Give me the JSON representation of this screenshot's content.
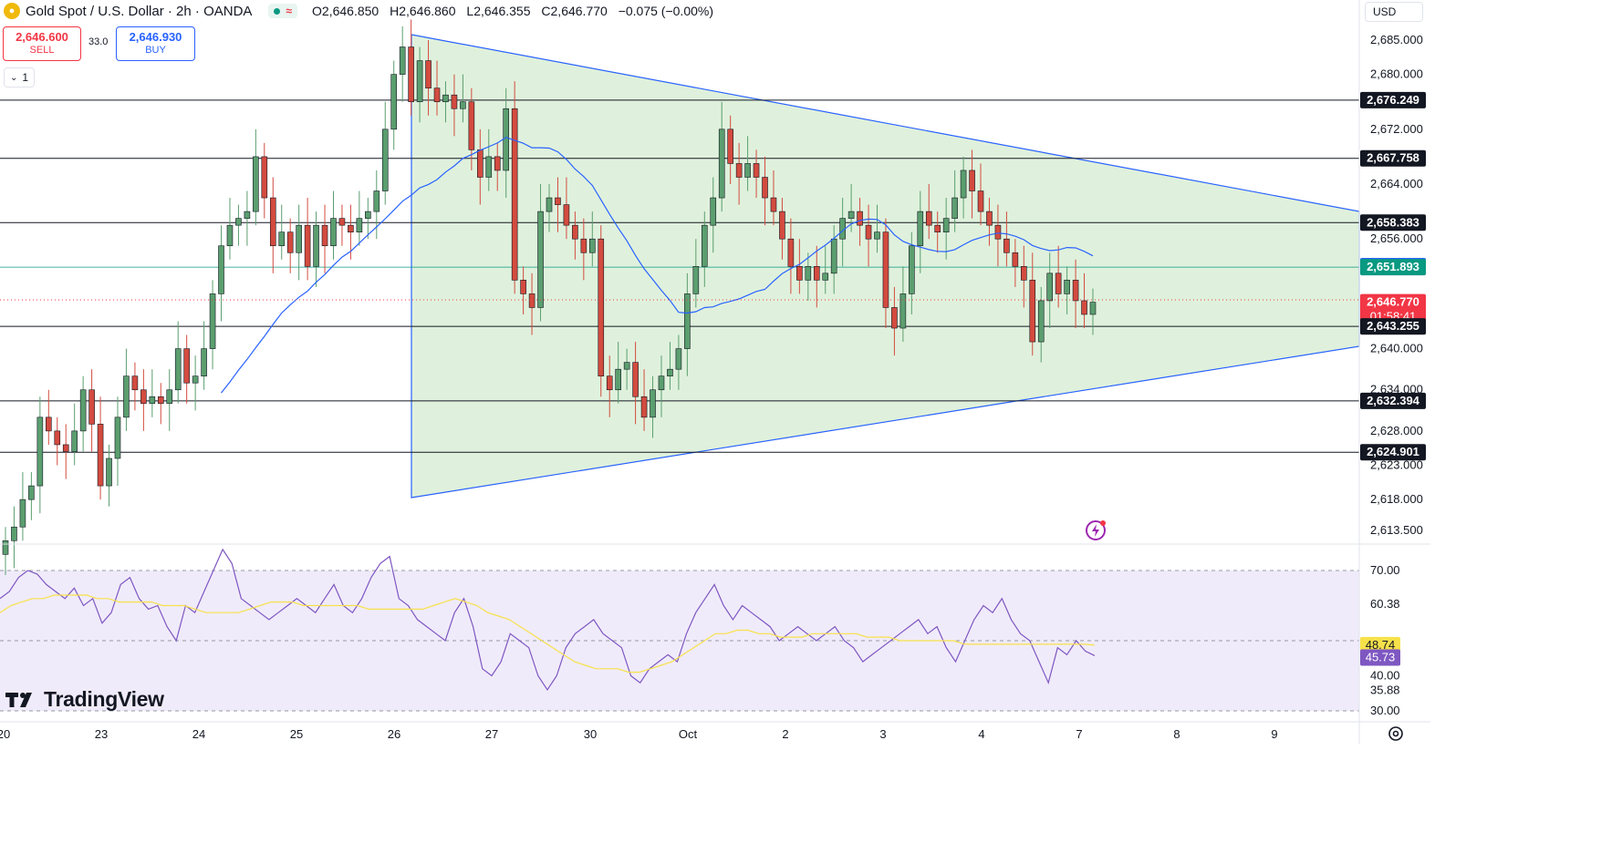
{
  "header": {
    "symbol": "Gold Spot / U.S. Dollar · 2h · OANDA",
    "ohlc": [
      {
        "label": "O",
        "value": "2,646.850"
      },
      {
        "label": "H",
        "value": "2,646.860"
      },
      {
        "label": "L",
        "value": "2,646.355"
      },
      {
        "label": "C",
        "value": "2,646.770"
      }
    ],
    "change": "−0.075 (−0.00%)"
  },
  "trade": {
    "sell_price": "2,646.600",
    "sell_label": "SELL",
    "spread": "33.0",
    "buy_price": "2,646.930",
    "buy_label": "BUY"
  },
  "indicator_toggle": "1",
  "currency": "USD",
  "brand": "TradingView",
  "colors": {
    "up": "#089981",
    "down": "#f23645",
    "candle_up": "#5b9e6f",
    "candle_down": "#d34b3f",
    "ma_line": "#2962ff",
    "rsi_line": "#7e57c2",
    "rsi_ma": "#f7e14a",
    "triangle_fill": "#dff1dc",
    "triangle_stroke": "#2962ff"
  },
  "chart_data": [
    {
      "type": "candlestick",
      "name": "price",
      "y_axis_ticks": [
        "2,685.000",
        "2,680.000",
        "2,672.000",
        "2,664.000",
        "2,656.000",
        "2,640.000",
        "2,634.000",
        "2,628.000",
        "2,623.000",
        "2,618.000",
        "2,613.500"
      ],
      "ylim": [
        2610,
        2690
      ],
      "x_axis_labels": [
        "20",
        "23",
        "24",
        "25",
        "26",
        "27",
        "30",
        "Oct",
        "2",
        "3",
        "4",
        "7",
        "8",
        "9"
      ],
      "horizontal_levels": [
        {
          "value": "2,676.249",
          "style": "black"
        },
        {
          "value": "2,667.758",
          "style": "black"
        },
        {
          "value": "2,658.383",
          "style": "black"
        },
        {
          "value": "2,652.035",
          "style": "blue"
        },
        {
          "value": "2,651.893",
          "style": "green"
        },
        {
          "value": "2,643.255",
          "style": "black"
        },
        {
          "value": "2,632.394",
          "style": "black"
        },
        {
          "value": "2,624.901",
          "style": "black"
        }
      ],
      "last_price": {
        "value": "2,646.770",
        "countdown": "01:58:41"
      },
      "closes": [
        2612,
        2614,
        2618,
        2620,
        2630,
        2628,
        2626,
        2625,
        2628,
        2634,
        2629,
        2620,
        2624,
        2630,
        2636,
        2634,
        2632,
        2633,
        2632,
        2634,
        2640,
        2635,
        2636,
        2640,
        2648,
        2655,
        2658,
        2659,
        2660,
        2668,
        2662,
        2655,
        2657,
        2654,
        2658,
        2652,
        2658,
        2655,
        2659,
        2658,
        2657,
        2659,
        2660,
        2663,
        2672,
        2680,
        2684,
        2676,
        2682,
        2678,
        2676,
        2677,
        2675,
        2676,
        2669,
        2665,
        2668,
        2666,
        2675,
        2650,
        2648,
        2646,
        2660,
        2662,
        2661,
        2658,
        2656,
        2654,
        2656,
        2636,
        2634,
        2637,
        2638,
        2633,
        2630,
        2634,
        2636,
        2637,
        2640,
        2648,
        2652,
        2658,
        2662,
        2672,
        2667,
        2665,
        2667,
        2665,
        2662,
        2660,
        2656,
        2652,
        2650,
        2652,
        2650,
        2651,
        2656,
        2659,
        2660,
        2658,
        2656,
        2657,
        2646,
        2643,
        2648,
        2655,
        2660,
        2658,
        2657,
        2659,
        2662,
        2666,
        2663,
        2660,
        2658,
        2656,
        2654,
        2652,
        2650,
        2641,
        2647,
        2651,
        2648,
        2650,
        2647,
        2645,
        2646.77
      ],
      "ma_line": "blue moving average"
    },
    {
      "type": "line",
      "name": "RSI",
      "y_axis_ticks": [
        "70.00",
        "60.38",
        "40.00",
        "35.88",
        "30.00"
      ],
      "ylim": [
        25,
        80
      ],
      "levels": [
        70,
        50,
        30
      ],
      "rsi_value": "45.73",
      "rsi_ma_value": "48.74",
      "rsi": [
        62,
        64,
        68,
        70,
        69,
        66,
        64,
        62,
        65,
        60,
        62,
        55,
        58,
        66,
        68,
        62,
        59,
        60,
        54,
        50,
        60,
        58,
        64,
        70,
        76,
        72,
        62,
        60,
        58,
        56,
        58,
        60,
        62,
        60,
        58,
        62,
        66,
        60,
        58,
        62,
        68,
        72,
        74,
        62,
        60,
        56,
        54,
        52,
        50,
        58,
        62,
        54,
        42,
        40,
        44,
        52,
        50,
        48,
        40,
        36,
        40,
        48,
        52,
        54,
        56,
        52,
        50,
        48,
        40,
        38,
        42,
        44,
        46,
        44,
        52,
        58,
        62,
        66,
        60,
        56,
        60,
        58,
        56,
        54,
        50,
        52,
        54,
        52,
        50,
        52,
        54,
        50,
        48,
        44,
        46,
        48,
        50,
        52,
        54,
        56,
        52,
        54,
        48,
        44,
        50,
        56,
        60,
        58,
        62,
        56,
        52,
        50,
        44,
        38,
        48,
        46,
        50,
        47,
        45.73
      ],
      "rsi_ma": [
        58,
        60,
        61,
        62,
        62,
        63,
        63,
        63,
        63,
        62,
        62,
        61,
        61,
        61,
        61,
        60,
        60,
        60,
        59,
        58,
        58,
        58,
        58,
        59,
        60,
        61,
        61,
        61,
        60,
        60,
        60,
        60,
        60,
        60,
        59,
        59,
        59,
        59,
        59,
        59,
        60,
        61,
        62,
        61,
        60,
        58,
        57,
        56,
        54,
        52,
        50,
        48,
        46,
        44,
        43,
        42,
        42,
        42,
        41,
        41,
        42,
        43,
        44,
        46,
        48,
        50,
        52,
        52,
        53,
        53,
        52,
        52,
        51,
        51,
        51,
        52,
        52,
        52,
        52,
        52,
        51,
        51,
        51,
        50,
        50,
        50,
        50,
        50,
        50,
        49,
        49,
        49,
        49,
        49,
        49,
        49,
        49,
        49,
        49,
        49,
        49,
        48.74
      ]
    }
  ]
}
